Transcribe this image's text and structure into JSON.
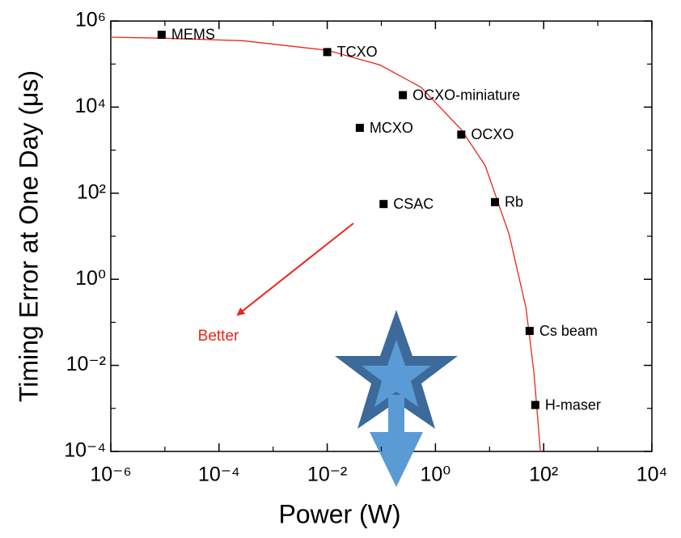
{
  "chart_data": {
    "type": "scatter",
    "xlabel": "Power (W)",
    "ylabel": "Timing Error at One Day (μs)",
    "xscale": "log",
    "yscale": "log",
    "xlim": [
      1e-06,
      10000
    ],
    "ylim": [
      0.0001,
      1000000
    ],
    "xticks": [
      {
        "value": 1e-06,
        "label": "10⁻⁶"
      },
      {
        "value": 0.0001,
        "label": "10⁻⁴"
      },
      {
        "value": 0.01,
        "label": "10⁻²"
      },
      {
        "value": 1,
        "label": "10⁰"
      },
      {
        "value": 100,
        "label": "10²"
      },
      {
        "value": 10000,
        "label": "10⁴"
      }
    ],
    "xticks_minor": [
      1e-05,
      0.001,
      0.1,
      10,
      1000
    ],
    "yticks": [
      {
        "value": 0.0001,
        "label": "10⁻⁴"
      },
      {
        "value": 0.01,
        "label": "10⁻²"
      },
      {
        "value": 1,
        "label": "10⁰"
      },
      {
        "value": 100,
        "label": "10²"
      },
      {
        "value": 10000,
        "label": "10⁴"
      },
      {
        "value": 1000000,
        "label": "10⁶"
      }
    ],
    "yticks_minor": [
      0.001,
      0.1,
      10,
      1000,
      100000
    ],
    "series": [
      {
        "color": "#000000",
        "x": [
          8.7e-06,
          0.01,
          0.25,
          0.04,
          3,
          0.11,
          12.6,
          55,
          70
        ],
        "y": [
          480000,
          190000,
          19000,
          3300,
          2300,
          56,
          62,
          0.063,
          0.0012
        ],
        "labels": [
          "MEMS",
          "TCXO",
          "OCXO-miniature",
          "MCXO",
          "OCXO",
          "CSAC",
          "Rb",
          "Cs beam",
          "H-maser"
        ]
      }
    ],
    "curve": {
      "color": "#e8261c",
      "x": [
        1e-06,
        8.7e-06,
        0.000275,
        0.01,
        0.095,
        0.54,
        3,
        8.3,
        23,
        47,
        66,
        87
      ],
      "y": [
        420000,
        400000,
        350000,
        210000,
        95000,
        29000,
        3000,
        440,
        11,
        0.22,
        0.007,
        0.0001
      ]
    },
    "annotation": {
      "text": "Better",
      "color": "#e8261c"
    }
  }
}
